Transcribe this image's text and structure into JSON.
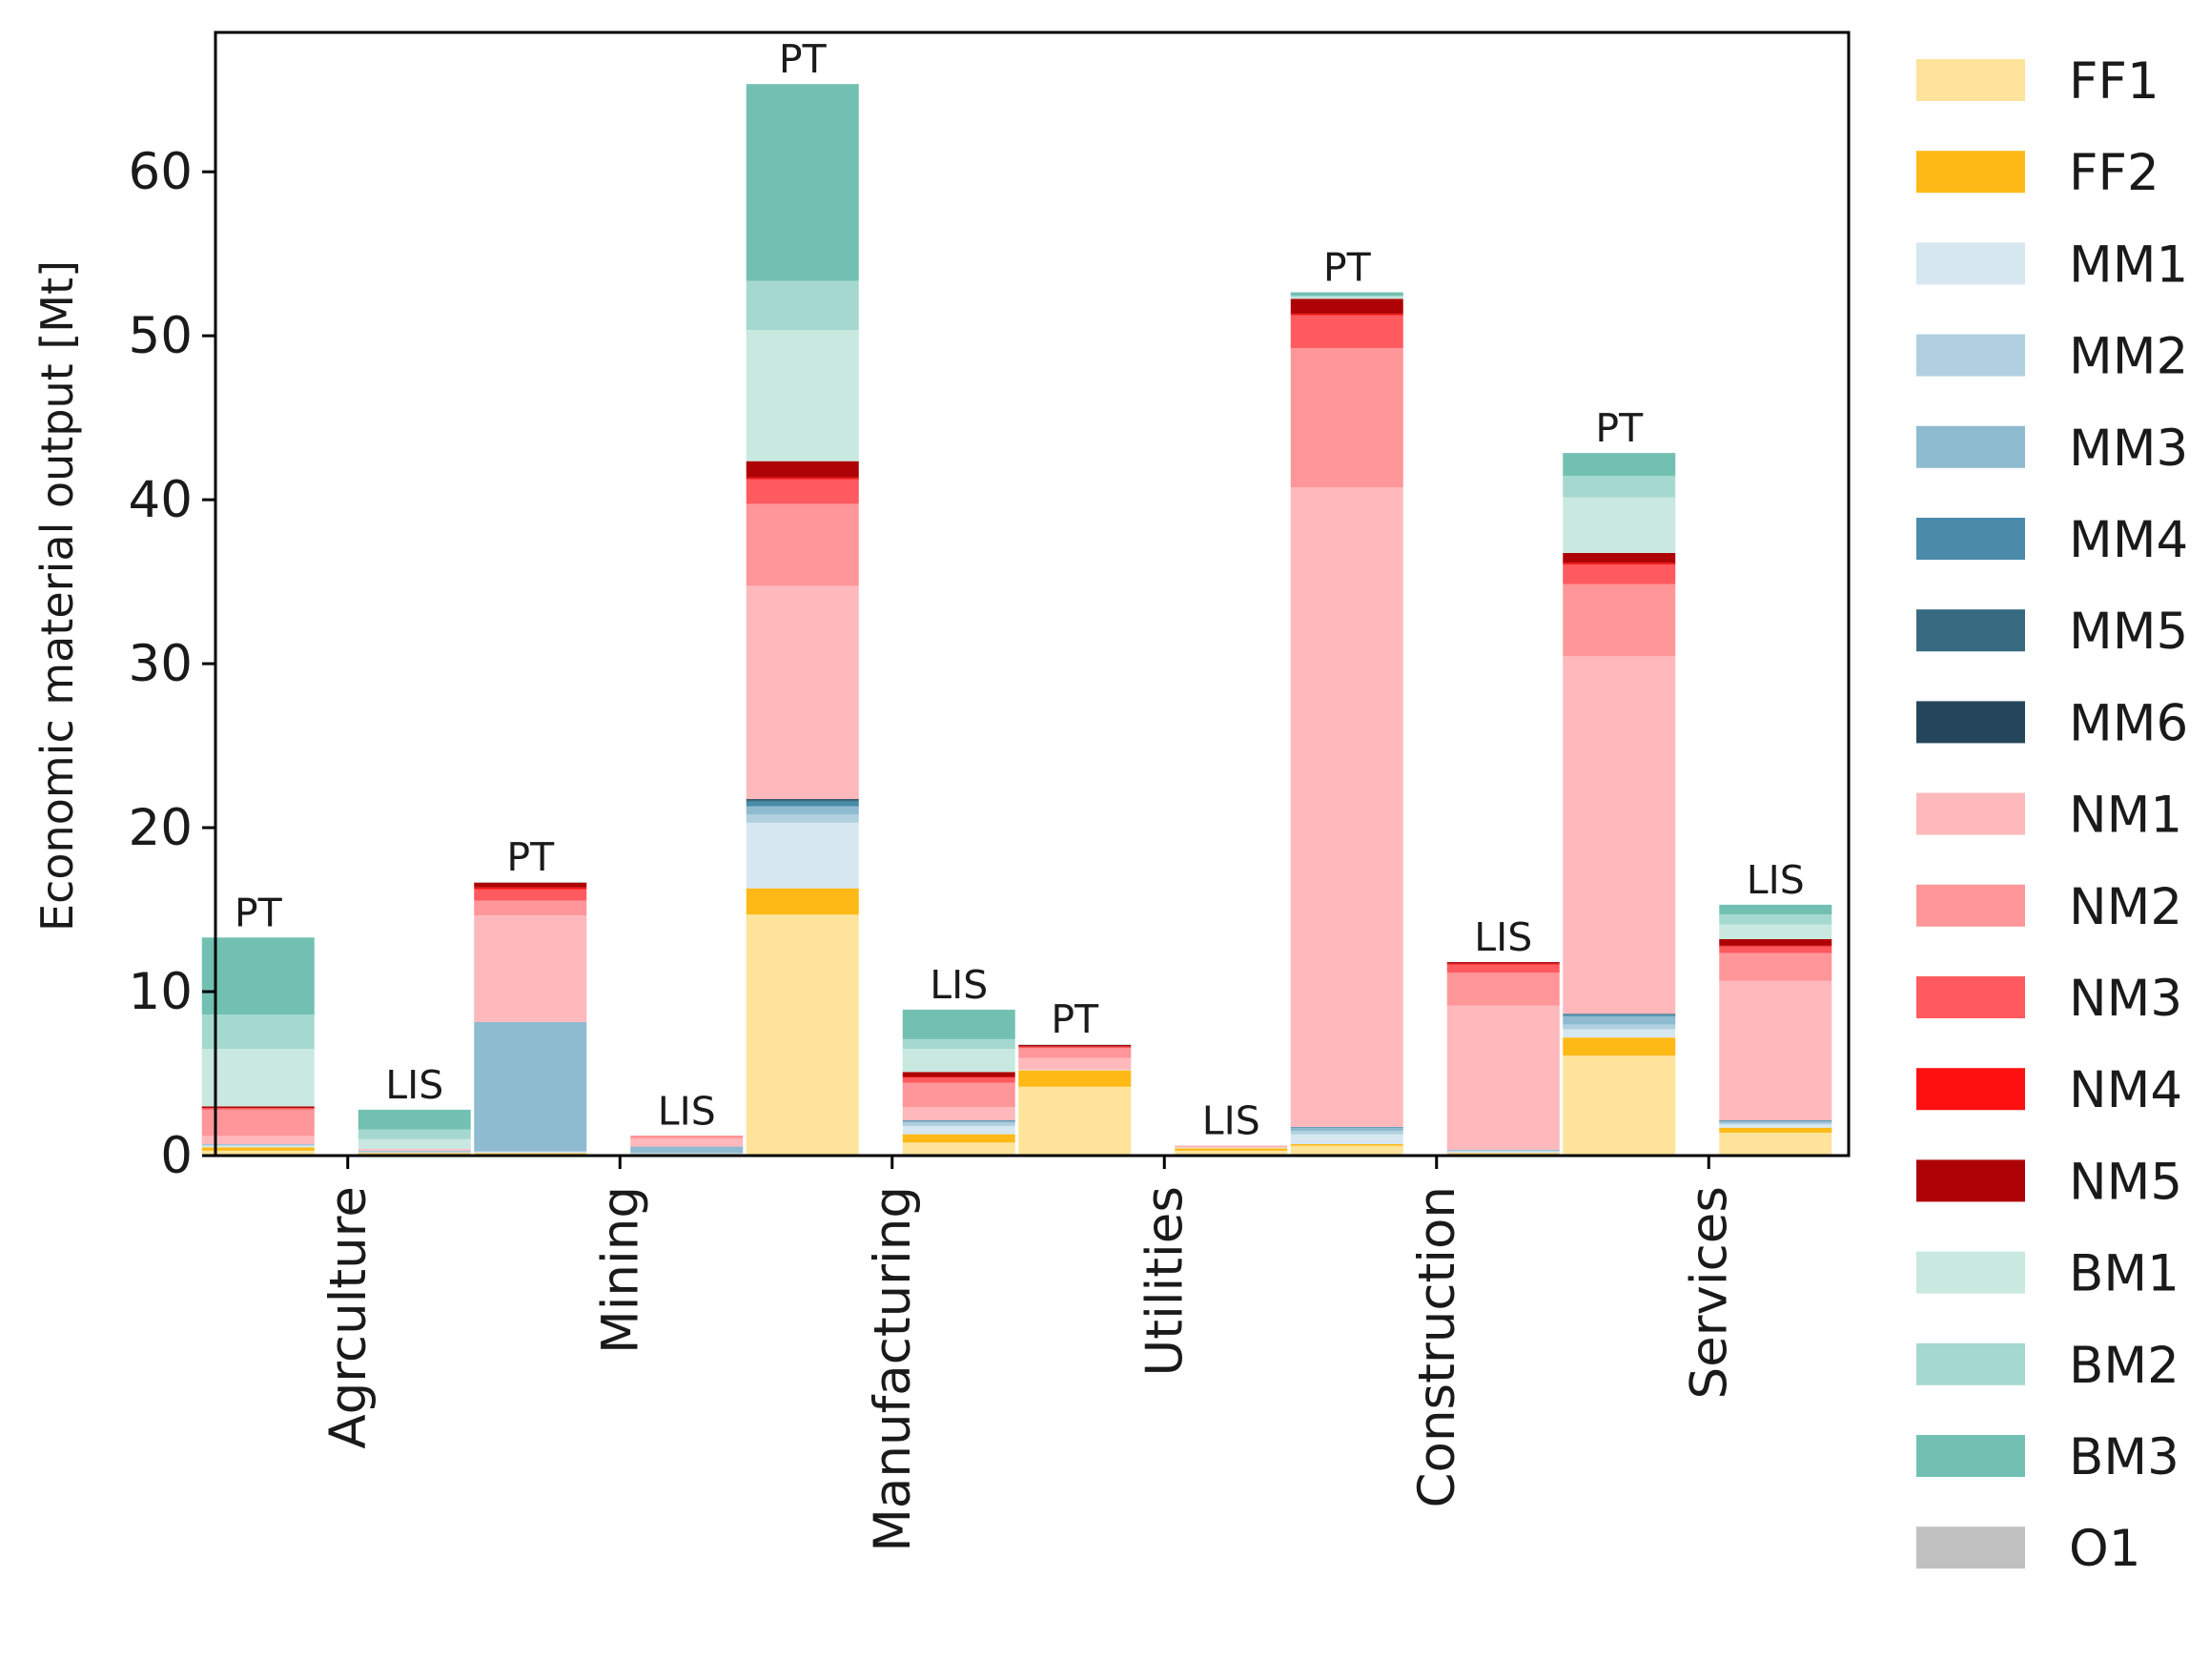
{
  "chart_data": {
    "type": "bar",
    "stacked": true,
    "title": "",
    "xlabel": "",
    "ylabel": "Economic material output [Mt]",
    "ylim": [
      0,
      68.5
    ],
    "yticks": [
      0,
      10,
      20,
      30,
      40,
      50,
      60
    ],
    "grid": false,
    "legend_position": "right-outside",
    "categories": [
      "Agrculture",
      "Mining",
      "Manufacturing",
      "Utilities",
      "Construction",
      "Services"
    ],
    "bar_types": [
      "PT",
      "LIS"
    ],
    "series": [
      {
        "name": "FF1",
        "color": "#FEE39B",
        "values": {
          "Agrculture": [
            0.3,
            0.1
          ],
          "Mining": [
            0.1,
            0.05
          ],
          "Manufacturing": [
            14.7,
            0.8
          ],
          "Utilities": [
            4.2,
            0.3
          ],
          "Construction": [
            0.6,
            0.1
          ],
          "Services": [
            6.1,
            1.4
          ]
        }
      },
      {
        "name": "FF2",
        "color": "#FFB916",
        "values": {
          "Agrculture": [
            0.2,
            0.05
          ],
          "Mining": [
            0.05,
            0.05
          ],
          "Manufacturing": [
            1.6,
            0.5
          ],
          "Utilities": [
            1.0,
            0.15
          ],
          "Construction": [
            0.1,
            0.05
          ],
          "Services": [
            1.1,
            0.3
          ]
        }
      },
      {
        "name": "MM1",
        "color": "#D6E7F0",
        "values": {
          "Agrculture": [
            0.1,
            0.05
          ],
          "Mining": [
            0.1,
            0.05
          ],
          "Manufacturing": [
            4.0,
            0.5
          ],
          "Utilities": [
            0.05,
            0.05
          ],
          "Construction": [
            0.6,
            0.1
          ],
          "Services": [
            0.5,
            0.2
          ]
        }
      },
      {
        "name": "MM2",
        "color": "#B0D0DF",
        "values": {
          "Agrculture": [
            0.05,
            0.05
          ],
          "Mining": [
            0.0,
            0.0
          ],
          "Manufacturing": [
            0.5,
            0.2
          ],
          "Utilities": [
            0.0,
            0.0
          ],
          "Construction": [
            0.2,
            0.05
          ],
          "Services": [
            0.3,
            0.1
          ]
        }
      },
      {
        "name": "MM3",
        "color": "#8EBBD0",
        "values": {
          "Agrculture": [
            0.05,
            0.05
          ],
          "Mining": [
            7.9,
            0.4
          ],
          "Manufacturing": [
            0.5,
            0.1
          ],
          "Utilities": [
            0.0,
            0.0
          ],
          "Construction": [
            0.2,
            0.05
          ],
          "Services": [
            0.5,
            0.1
          ]
        }
      },
      {
        "name": "MM4",
        "color": "#4A8BAA",
        "values": {
          "Agrculture": [
            0.0,
            0.0
          ],
          "Mining": [
            0.0,
            0.0
          ],
          "Manufacturing": [
            0.3,
            0.05
          ],
          "Utilities": [
            0.0,
            0.0
          ],
          "Construction": [
            0.05,
            0.0
          ],
          "Services": [
            0.1,
            0.05
          ]
        }
      },
      {
        "name": "MM5",
        "color": "#376A80",
        "values": {
          "Agrculture": [
            0.0,
            0.0
          ],
          "Mining": [
            0.0,
            0.0
          ],
          "Manufacturing": [
            0.1,
            0.0
          ],
          "Utilities": [
            0.0,
            0.0
          ],
          "Construction": [
            0.0,
            0.0
          ],
          "Services": [
            0.05,
            0.0
          ]
        }
      },
      {
        "name": "MM6",
        "color": "#25465A",
        "values": {
          "Agrculture": [
            0.0,
            0.0
          ],
          "Mining": [
            0.0,
            0.0
          ],
          "Manufacturing": [
            0.05,
            0.0
          ],
          "Utilities": [
            0.0,
            0.0
          ],
          "Construction": [
            0.0,
            0.0
          ],
          "Services": [
            0.0,
            0.0
          ]
        }
      },
      {
        "name": "NM1",
        "color": "#FFB8BB",
        "values": {
          "Agrculture": [
            0.5,
            0.1
          ],
          "Mining": [
            6.5,
            0.5
          ],
          "Manufacturing": [
            13.0,
            0.8
          ],
          "Utilities": [
            0.7,
            0.05
          ],
          "Construction": [
            39.0,
            8.8
          ],
          "Services": [
            21.8,
            8.5
          ]
        }
      },
      {
        "name": "NM2",
        "color": "#FF9699",
        "values": {
          "Agrculture": [
            1.6,
            0.0
          ],
          "Mining": [
            0.9,
            0.1
          ],
          "Manufacturing": [
            5.0,
            1.5
          ],
          "Utilities": [
            0.6,
            0.05
          ],
          "Construction": [
            8.5,
            2.0
          ],
          "Services": [
            4.4,
            1.7
          ]
        }
      },
      {
        "name": "NM3",
        "color": "#FF5A5F",
        "values": {
          "Agrculture": [
            0.1,
            0.0
          ],
          "Mining": [
            0.7,
            0.05
          ],
          "Manufacturing": [
            1.5,
            0.3
          ],
          "Utilities": [
            0.1,
            0.0
          ],
          "Construction": [
            2.0,
            0.5
          ],
          "Services": [
            1.2,
            0.4
          ]
        }
      },
      {
        "name": "NM4",
        "color": "#FF1010",
        "values": {
          "Agrculture": [
            0.0,
            0.0
          ],
          "Mining": [
            0.1,
            0.0
          ],
          "Manufacturing": [
            0.1,
            0.05
          ],
          "Utilities": [
            0.0,
            0.0
          ],
          "Construction": [
            0.1,
            0.05
          ],
          "Services": [
            0.1,
            0.05
          ]
        }
      },
      {
        "name": "NM5",
        "color": "#AE0306",
        "values": {
          "Agrculture": [
            0.1,
            0.0
          ],
          "Mining": [
            0.3,
            0.0
          ],
          "Manufacturing": [
            1.0,
            0.3
          ],
          "Utilities": [
            0.1,
            0.0
          ],
          "Construction": [
            0.9,
            0.1
          ],
          "Services": [
            0.6,
            0.4
          ]
        }
      },
      {
        "name": "BM1",
        "color": "#C8E8E0",
        "values": {
          "Agrculture": [
            3.5,
            0.6
          ],
          "Mining": [
            0.05,
            0.0
          ],
          "Manufacturing": [
            8.0,
            1.4
          ],
          "Utilities": [
            0.05,
            0.0
          ],
          "Construction": [
            0.1,
            0.0
          ],
          "Services": [
            3.4,
            0.9
          ]
        }
      },
      {
        "name": "BM2",
        "color": "#A5D9D0",
        "values": {
          "Agrculture": [
            2.1,
            0.6
          ],
          "Mining": [
            0.0,
            0.0
          ],
          "Manufacturing": [
            3.0,
            0.6
          ],
          "Utilities": [
            0.0,
            0.0
          ],
          "Construction": [
            0.1,
            0.0
          ],
          "Services": [
            1.3,
            0.6
          ]
        }
      },
      {
        "name": "BM3",
        "color": "#72C0B2",
        "values": {
          "Agrculture": [
            4.7,
            1.2
          ],
          "Mining": [
            0.0,
            0.0
          ],
          "Manufacturing": [
            12.0,
            1.8
          ],
          "Utilities": [
            0.0,
            0.0
          ],
          "Construction": [
            0.2,
            0.0
          ],
          "Services": [
            1.4,
            0.6
          ]
        }
      },
      {
        "name": "O1",
        "color": "#C0C0C0",
        "values": {
          "Agrculture": [
            0.0,
            0.0
          ],
          "Mining": [
            0.0,
            0.0
          ],
          "Manufacturing": [
            0.0,
            0.0
          ],
          "Utilities": [
            0.0,
            0.0
          ],
          "Construction": [
            0.0,
            0.0
          ],
          "Services": [
            0.0,
            0.0
          ]
        }
      }
    ]
  }
}
